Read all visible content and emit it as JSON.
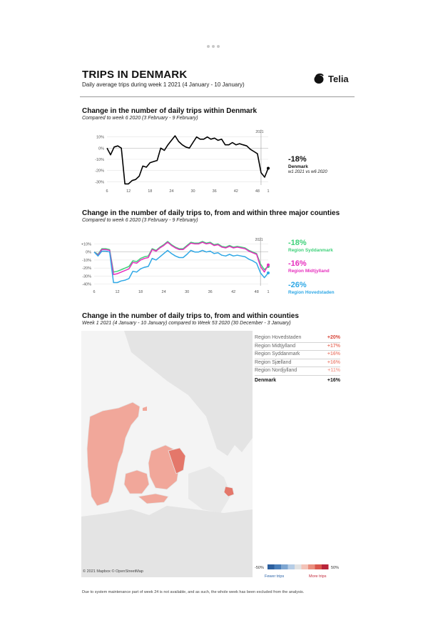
{
  "header": {
    "title": "TRIPS IN DENMARK",
    "subtitle": "Daily average trips during week 1 2021 (4 January - 10 January)",
    "logo_text": "Telia"
  },
  "section1": {
    "title": "Change in the number of daily trips within Denmark",
    "subtitle": "Compared to week 6 2020 (3 February - 9 February)",
    "annotation_year": "2021",
    "side": {
      "value": "-18%",
      "label": "Denmark",
      "note": "w1 2021 vs w6 2020"
    }
  },
  "section2": {
    "title": "Change in the number of daily trips to, from and within three major counties",
    "subtitle": "Compared to week 6 2020 (3 February - 9 February)",
    "annotation_year": "2021",
    "side": [
      {
        "value": "-18%",
        "label": "Region Syddanmark"
      },
      {
        "value": "-16%",
        "label": "Region Midtjylland"
      },
      {
        "value": "-26%",
        "label": "Region Hovedstaden"
      }
    ]
  },
  "section3": {
    "title": "Change in the number of daily trips to, from and within counties",
    "subtitle": "Week 1 2021 (4 January - 10 January) compared to Week 53 2020 (30 December - 3 January)",
    "table": [
      {
        "name": "Region Hovedstaden",
        "value": "+20%"
      },
      {
        "name": "Region Midtjylland",
        "value": "+17%"
      },
      {
        "name": "Region Syddanmark",
        "value": "+16%"
      },
      {
        "name": "Region Sjælland",
        "value": "+16%"
      },
      {
        "name": "Region Nordjylland",
        "value": "+11%"
      }
    ],
    "total": {
      "name": "Denmark",
      "value": "+16%"
    },
    "map_credit": "© 2021 Mapbox © OpenStreetMap",
    "legend": {
      "min": "-50%",
      "max": "50%",
      "fewer": "Fewer trips",
      "more": "More trips"
    }
  },
  "footer": "Due to system maintenance part of week 24 is not available, and as such, the whole week has been excluded from the analysis.",
  "colors": {
    "denmark": "#000000",
    "syddanmark": "#3fd17a",
    "midtjylland": "#e62ebd",
    "hovedstaden": "#2fa8e6",
    "negative_value": "#111111",
    "positive_value": "#e05a4a"
  },
  "chart_data": [
    {
      "type": "line",
      "x_ticks": [
        "6",
        "12",
        "18",
        "24",
        "30",
        "36",
        "42",
        "48",
        "1"
      ],
      "ylim": [
        -33,
        13
      ],
      "y_ticks": [
        "10%",
        "0%",
        "-10%",
        "-20%",
        "-30%"
      ],
      "y_tick_values": [
        10,
        0,
        -10,
        -20,
        -30
      ],
      "series": [
        {
          "name": "Denmark",
          "values": [
            0,
            -6,
            1,
            2,
            0,
            -32,
            -32,
            -29,
            -28,
            -25,
            -16,
            -17,
            -13,
            -12,
            -11,
            0,
            -2,
            3,
            7,
            11,
            6,
            3,
            1,
            0,
            5,
            10,
            8,
            8,
            10,
            8,
            9,
            7,
            8,
            3,
            3,
            5,
            3,
            4,
            3,
            2,
            -1,
            -3,
            -5,
            -22,
            -26,
            -18
          ]
        }
      ]
    },
    {
      "type": "line",
      "x_ticks": [
        "6",
        "12",
        "18",
        "24",
        "30",
        "36",
        "42",
        "48",
        "1"
      ],
      "ylim": [
        -42,
        13
      ],
      "y_ticks": [
        "+10%",
        "0%",
        "-10%",
        "-20%",
        "-30%",
        "-40%"
      ],
      "y_tick_values": [
        10,
        0,
        -10,
        -20,
        -30,
        -40
      ],
      "series": [
        {
          "name": "Region Syddanmark",
          "values": [
            0,
            -3,
            4,
            4,
            3,
            -25,
            -24,
            -22,
            -20,
            -18,
            -11,
            -12,
            -8,
            -6,
            -5,
            4,
            2,
            6,
            9,
            13,
            9,
            6,
            4,
            4,
            8,
            12,
            11,
            11,
            13,
            11,
            12,
            9,
            10,
            7,
            6,
            8,
            6,
            7,
            6,
            5,
            2,
            0,
            -2,
            -15,
            -22,
            -18
          ]
        },
        {
          "name": "Region Midtjylland",
          "values": [
            0,
            -4,
            3,
            3,
            2,
            -28,
            -27,
            -25,
            -23,
            -21,
            -13,
            -14,
            -10,
            -8,
            -7,
            3,
            1,
            5,
            8,
            12,
            8,
            5,
            3,
            3,
            7,
            11,
            10,
            10,
            12,
            10,
            11,
            8,
            9,
            6,
            5,
            7,
            5,
            6,
            5,
            4,
            1,
            -1,
            -3,
            -18,
            -25,
            -16
          ]
        },
        {
          "name": "Region Hovedstaden",
          "values": [
            0,
            -5,
            1,
            1,
            0,
            -38,
            -38,
            -36,
            -35,
            -33,
            -24,
            -25,
            -21,
            -19,
            -18,
            -8,
            -10,
            -6,
            -2,
            2,
            -2,
            -5,
            -7,
            -7,
            -3,
            2,
            0,
            0,
            2,
            0,
            1,
            -2,
            -1,
            -4,
            -5,
            -3,
            -5,
            -4,
            -5,
            -6,
            -9,
            -11,
            -14,
            -26,
            -32,
            -26
          ]
        }
      ]
    }
  ]
}
